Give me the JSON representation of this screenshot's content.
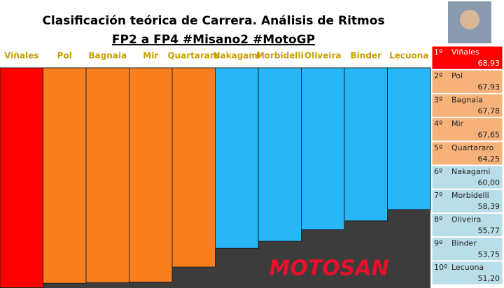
{
  "chart_data": {
    "type": "bar",
    "title": "Clasificación teórica de Carrera. Análisis de Ritmos",
    "subtitle": "FP2 a FP4 #Misano2 #MotoGP",
    "categories": [
      "Viñales",
      "Pol",
      "Bagnaia",
      "Mir",
      "Quartararo",
      "Nakagami",
      "Morbidelli",
      "Oliveira",
      "Binder",
      "Lecuona"
    ],
    "values": [
      68.93,
      67.93,
      67.78,
      67.65,
      64.25,
      60.0,
      58.39,
      55.77,
      53.75,
      51.2
    ],
    "value_labels": [
      "68,93",
      "67,93",
      "67,78",
      "67,65",
      "64,25",
      "60,00",
      "58,39",
      "55,77",
      "53,75",
      "51,20"
    ],
    "colors": [
      "#ff0000",
      "#fa7f1e",
      "#fa7f1e",
      "#fa7f1e",
      "#fa7f1e",
      "#29b6f6",
      "#29b6f6",
      "#29b6f6",
      "#29b6f6",
      "#29b6f6"
    ],
    "ylim": [
      19,
      69
    ],
    "ranks": [
      "1º",
      "2º",
      "3º",
      "4º",
      "5º",
      "6º",
      "7º",
      "8º",
      "9º",
      "10º"
    ],
    "row_colors": [
      "#ff0000",
      "#f7b27a",
      "#f7b27a",
      "#f7b27a",
      "#f7b27a",
      "#b9dde9",
      "#b9dde9",
      "#b9dde9",
      "#b9dde9",
      "#b9dde9"
    ],
    "watermark": "MOTOSAN"
  }
}
